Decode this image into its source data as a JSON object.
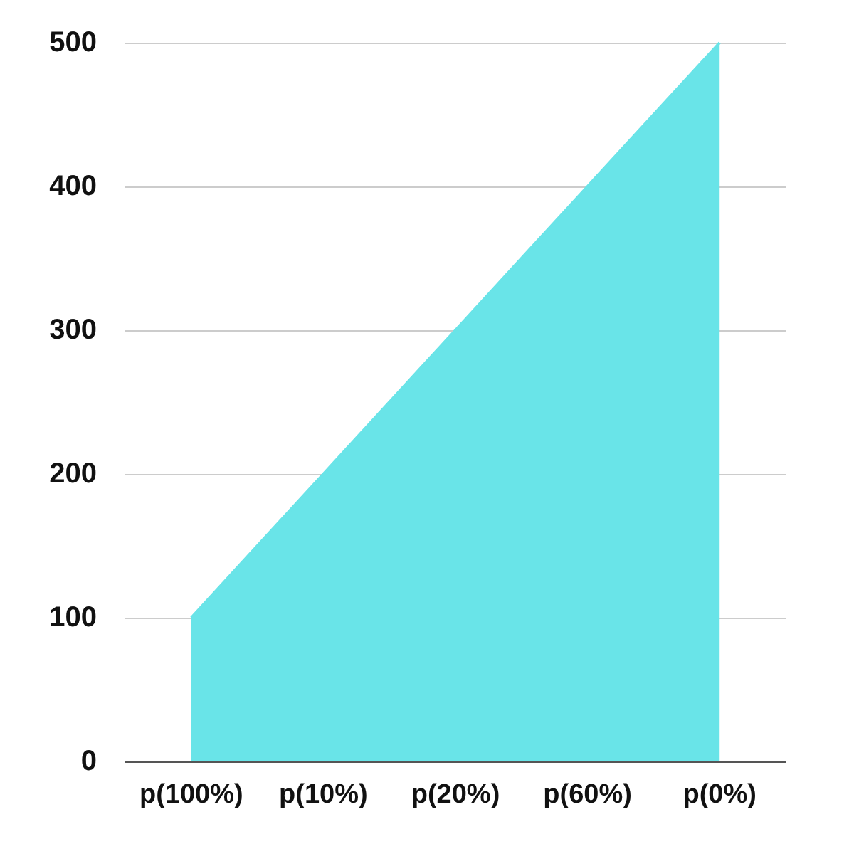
{
  "chart_data": {
    "type": "area",
    "categories": [
      "p(100%)",
      "p(10%)",
      "p(20%)",
      "p(60%)",
      "p(0%)"
    ],
    "series": [
      {
        "color": "#69e4e8",
        "values": [
          100,
          200,
          300,
          400,
          500
        ]
      }
    ],
    "ylim": [
      0,
      500
    ],
    "yticks": [
      0,
      100,
      200,
      300,
      400,
      500
    ],
    "grid": "y",
    "marker": "none"
  }
}
